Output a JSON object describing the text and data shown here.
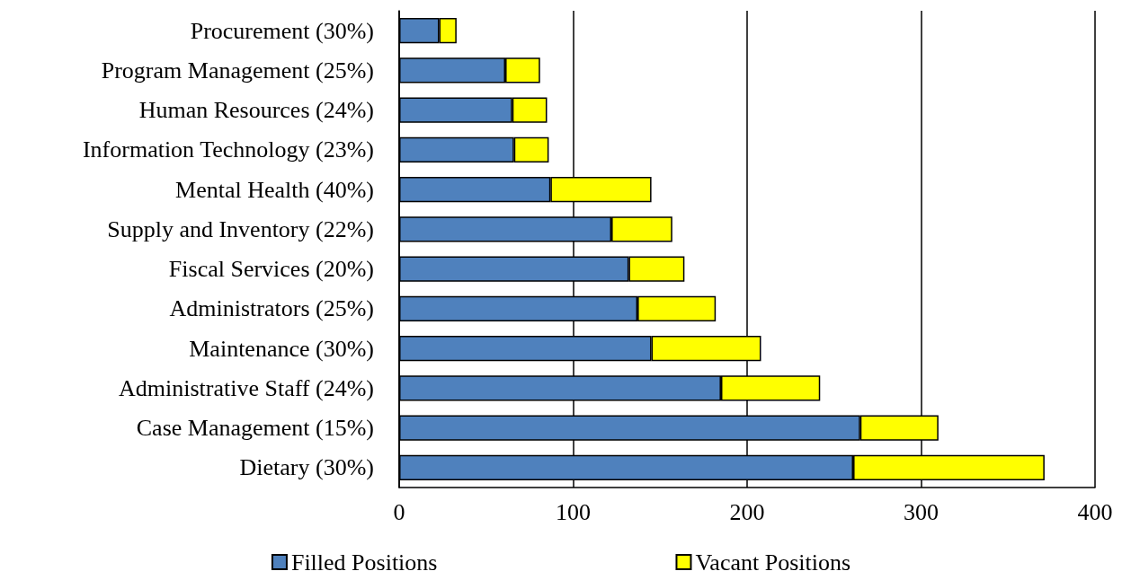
{
  "chart_data": {
    "type": "bar",
    "orientation": "horizontal",
    "stacked": true,
    "categories": [
      "Procurement (30%)",
      "Program Management (25%)",
      "Human Resources (24%)",
      "Information Technology (23%)",
      "Mental Health (40%)",
      "Supply and Inventory (22%)",
      "Fiscal Services (20%)",
      "Administrators (25%)",
      "Maintenance (30%)",
      "Administrative Staff (24%)",
      "Case Management (15%)",
      "Dietary (30%)"
    ],
    "series": [
      {
        "name": "Filled Positions",
        "color": "#4f81bd",
        "values": [
          23,
          61,
          65,
          66,
          87,
          122,
          132,
          137,
          145,
          185,
          265,
          261
        ]
      },
      {
        "name": "Vacant Positions",
        "color": "#ffff00",
        "values": [
          10,
          20,
          20,
          20,
          58,
          35,
          32,
          45,
          63,
          57,
          45,
          110
        ]
      }
    ],
    "xlim": [
      0,
      400
    ],
    "xticks": [
      0,
      100,
      200,
      300,
      400
    ],
    "grid": "x",
    "legend": "bottom"
  }
}
